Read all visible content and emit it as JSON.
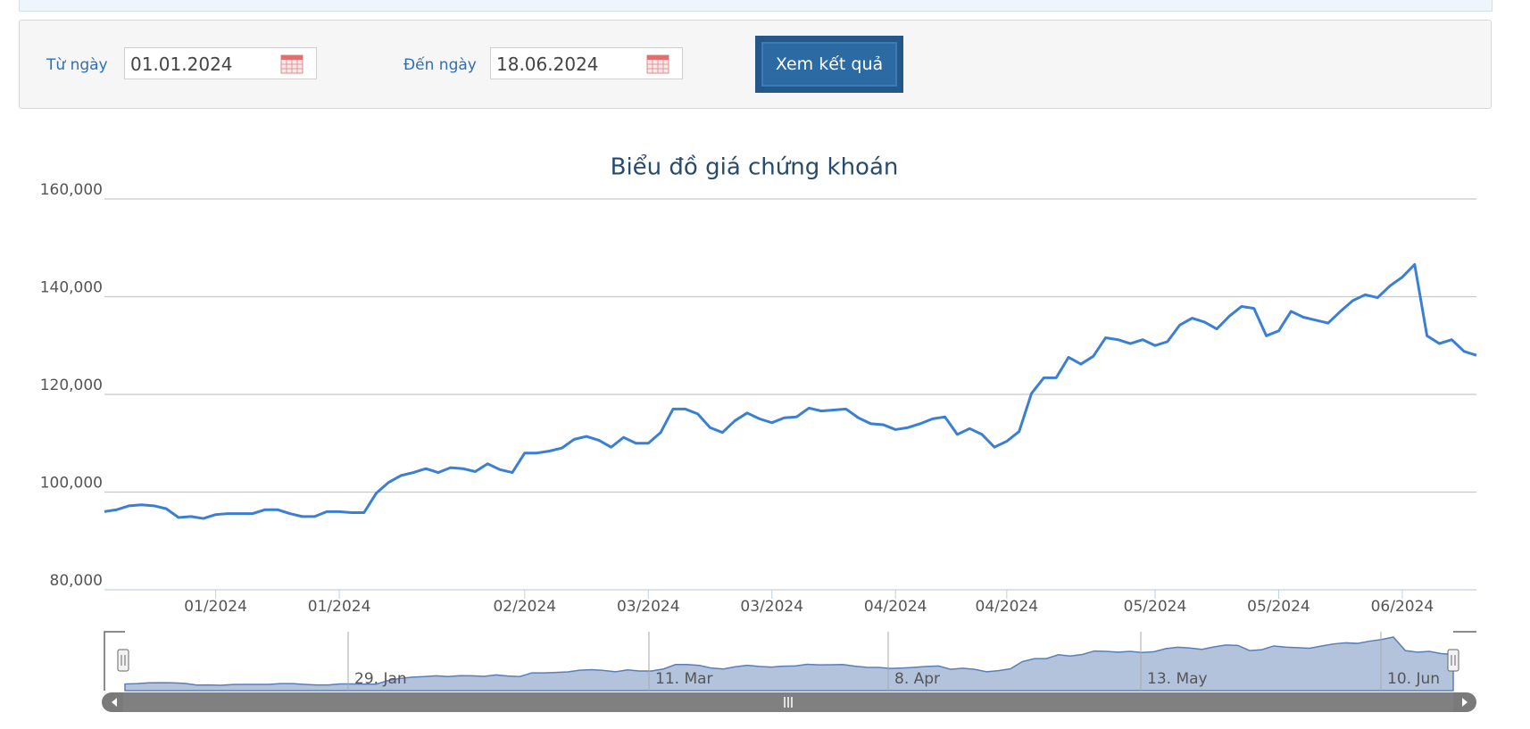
{
  "form": {
    "from_label": "Từ ngày",
    "from_value": "01.01.2024",
    "to_label": "Đến ngày",
    "to_value": "18.06.2024",
    "button": "Xem kết quả"
  },
  "chart_data": {
    "type": "line",
    "title": "Biểu đồ giá chứng khoán",
    "color": "#3a7fd5",
    "grid": true,
    "ylim": [
      80000,
      160000
    ],
    "yticks": [
      {
        "value": 80000,
        "label": "80,000"
      },
      {
        "value": 100000,
        "label": "100,000"
      },
      {
        "value": 120000,
        "label": "120,000"
      },
      {
        "value": 140000,
        "label": "140,000"
      },
      {
        "value": 160000,
        "label": "160,000"
      }
    ],
    "categories": [
      null,
      null,
      null,
      null,
      null,
      null,
      null,
      null,
      null,
      "01/2024",
      null,
      null,
      null,
      null,
      null,
      null,
      null,
      null,
      null,
      "01/2024",
      null,
      null,
      null,
      null,
      null,
      null,
      null,
      null,
      null,
      null,
      null,
      null,
      null,
      null,
      "02/2024",
      null,
      null,
      null,
      null,
      null,
      null,
      null,
      null,
      null,
      "03/2024",
      null,
      null,
      null,
      null,
      null,
      null,
      null,
      null,
      null,
      "03/2024",
      null,
      null,
      null,
      null,
      null,
      null,
      null,
      null,
      null,
      "04/2024",
      null,
      null,
      null,
      null,
      null,
      null,
      null,
      null,
      "04/2024",
      null,
      null,
      null,
      null,
      null,
      null,
      null,
      null,
      null,
      null,
      null,
      "05/2024",
      null,
      null,
      null,
      null,
      null,
      null,
      null,
      null,
      null,
      "05/2024",
      null,
      null,
      null,
      null,
      null,
      null,
      null,
      null,
      null,
      "06/2024",
      null,
      null,
      null,
      null,
      null,
      null
    ],
    "values": [
      96000,
      96400,
      97200,
      97400,
      97200,
      96600,
      94800,
      95000,
      94600,
      95400,
      95600,
      95600,
      95600,
      96400,
      96400,
      95600,
      95000,
      95000,
      96000,
      96000,
      95800,
      95800,
      99800,
      102000,
      103400,
      104000,
      104800,
      104000,
      105000,
      104800,
      104200,
      105800,
      104600,
      104000,
      108000,
      108000,
      108400,
      109000,
      110800,
      111400,
      110600,
      109200,
      111200,
      110000,
      110000,
      112200,
      117000,
      117000,
      116000,
      113200,
      112200,
      114600,
      116200,
      115000,
      114200,
      115200,
      115400,
      117200,
      116600,
      116800,
      117000,
      115200,
      114000,
      113800,
      112800,
      113200,
      114000,
      115000,
      115400,
      111800,
      113000,
      111800,
      109200,
      110400,
      112400,
      120200,
      123400,
      123400,
      127600,
      126200,
      127800,
      131600,
      131200,
      130400,
      131200,
      130000,
      130800,
      134200,
      135600,
      134800,
      133400,
      136000,
      138000,
      137600,
      132000,
      133000,
      137000,
      135800,
      135200,
      134600,
      137000,
      139200,
      140400,
      139800,
      142200,
      144000,
      146600,
      132000,
      130400,
      131200,
      128800,
      128000
    ],
    "navigator": {
      "labels": [
        "29. Jan",
        "11. Mar",
        "8. Apr",
        "13. May",
        "10. Jun"
      ]
    }
  }
}
